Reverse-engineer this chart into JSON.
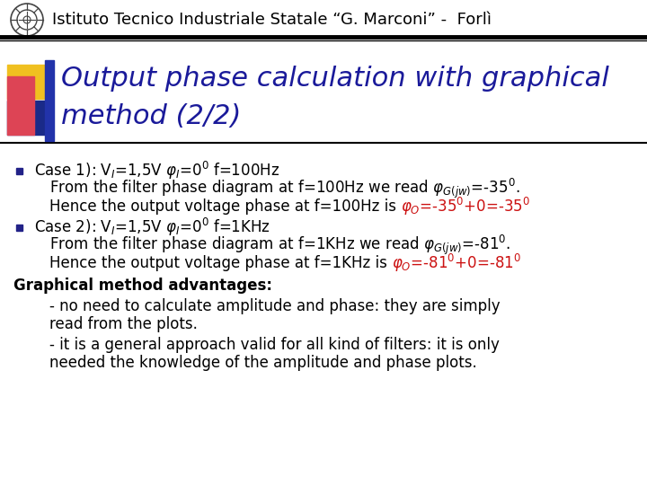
{
  "header_text": "Istituto Tecnico Industriale Statale “G. Marconi” -  Forlì",
  "title_line1": "Output phase calculation with graphical",
  "title_line2": "method (2/2)",
  "title_color": "#1a1a9a",
  "background_color": "#ffffff",
  "sq_yellow": "#f0c020",
  "sq_red": "#dd4455",
  "sq_blue_dark": "#1a2a88",
  "sq_blue_right": "#2233aa",
  "bullet_color": "#222288",
  "body_color": "#000000",
  "red_color": "#cc1111",
  "header_fontsize": 13,
  "title_fontsize": 22,
  "body_fontsize": 12
}
